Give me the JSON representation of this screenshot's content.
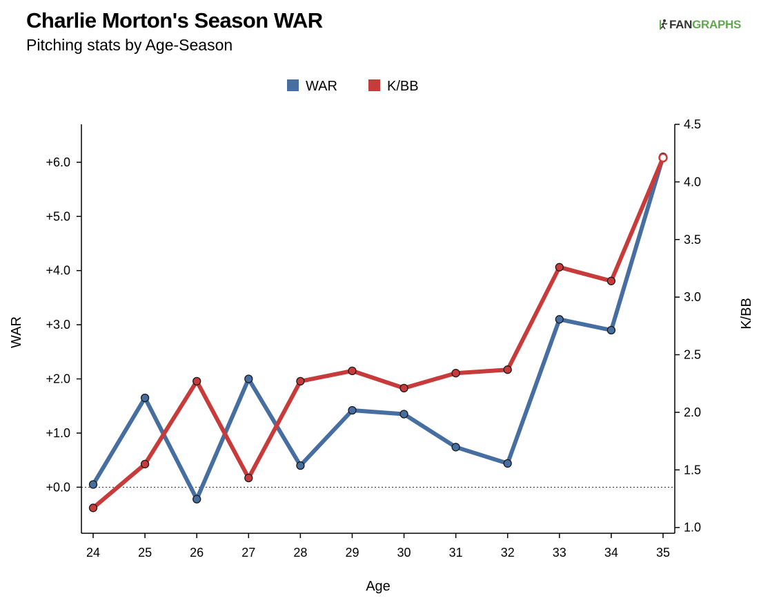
{
  "header": {
    "title": "Charlie Morton's Season WAR",
    "subtitle": "Pitching stats by Age-Season",
    "logo_fan": "FAN",
    "logo_graphs": "GRAPHS"
  },
  "chart_data": {
    "type": "line",
    "title": "Charlie Morton's Season WAR",
    "subtitle": "Pitching stats by Age-Season",
    "xlabel": "Age",
    "ylabel": "WAR",
    "y2label": "K/BB",
    "x": [
      24,
      25,
      26,
      27,
      28,
      29,
      30,
      31,
      32,
      33,
      34,
      35
    ],
    "ylim": [
      -0.85,
      6.7
    ],
    "y2lim": [
      0.95,
      4.5
    ],
    "yticks": [
      0,
      1,
      2,
      3,
      4,
      5,
      6
    ],
    "ytick_labels": [
      "+0.0",
      "+1.0",
      "+2.0",
      "+3.0",
      "+4.0",
      "+5.0",
      "+6.0"
    ],
    "y2ticks": [
      1.0,
      1.5,
      2.0,
      2.5,
      3.0,
      3.5,
      4.0,
      4.5
    ],
    "y2tick_labels": [
      "1.0",
      "1.5",
      "2.0",
      "2.5",
      "3.0",
      "3.5",
      "4.0",
      "4.5"
    ],
    "reference_line": {
      "axis": "y",
      "value": 0,
      "style": "dotted"
    },
    "legend_position": "top-center",
    "grid": false,
    "series": [
      {
        "name": "WAR",
        "axis": "left",
        "color": "#466ea1",
        "values": [
          0.05,
          1.65,
          -0.22,
          2.0,
          0.4,
          1.42,
          1.35,
          0.74,
          0.44,
          3.1,
          2.9,
          6.1
        ]
      },
      {
        "name": "K/BB",
        "axis": "right",
        "color": "#c83b3b",
        "values": [
          1.17,
          1.55,
          2.27,
          1.43,
          2.27,
          2.36,
          2.21,
          2.34,
          2.37,
          3.26,
          3.14,
          4.21
        ]
      }
    ]
  }
}
